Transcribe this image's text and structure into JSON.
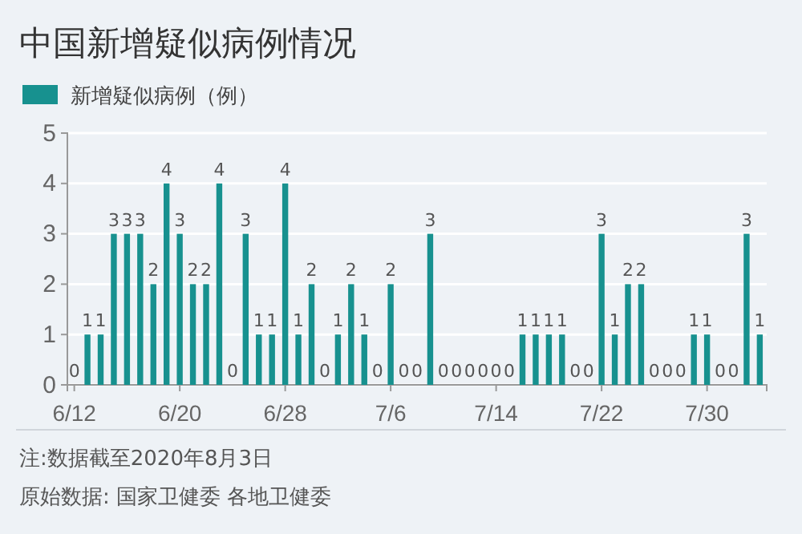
{
  "chart_data": {
    "type": "bar",
    "title": "中国新增疑似病例情况",
    "categories": [
      "6/12",
      null,
      null,
      null,
      null,
      null,
      null,
      null,
      "6/20",
      null,
      null,
      null,
      null,
      null,
      null,
      null,
      "6/28",
      null,
      null,
      null,
      null,
      null,
      null,
      null,
      "7/6",
      null,
      null,
      null,
      null,
      null,
      null,
      null,
      "7/14",
      null,
      null,
      null,
      null,
      null,
      null,
      null,
      "7/22",
      null,
      null,
      null,
      null,
      null,
      null,
      null,
      "7/30",
      null,
      null,
      null,
      null
    ],
    "series": [
      {
        "name": "新增疑似病例（例）",
        "color": "#17918f",
        "values": [
          0,
          1,
          1,
          3,
          3,
          3,
          2,
          4,
          3,
          2,
          2,
          4,
          0,
          3,
          1,
          1,
          4,
          1,
          2,
          0,
          1,
          2,
          1,
          0,
          2,
          0,
          0,
          3,
          0,
          0,
          0,
          0,
          0,
          0,
          1,
          1,
          1,
          1,
          0,
          0,
          3,
          1,
          2,
          2,
          0,
          0,
          0,
          1,
          1,
          0,
          0,
          3,
          1
        ]
      }
    ],
    "ylim": [
      0,
      5
    ],
    "yticks": [
      0,
      1,
      2,
      3,
      4,
      5
    ],
    "grid": "y",
    "legend": "top left",
    "data_labels": true,
    "annotations": [
      "注:数据截至2020年8月3日",
      "原始数据: 国家卫健委 各地卫健委"
    ]
  }
}
